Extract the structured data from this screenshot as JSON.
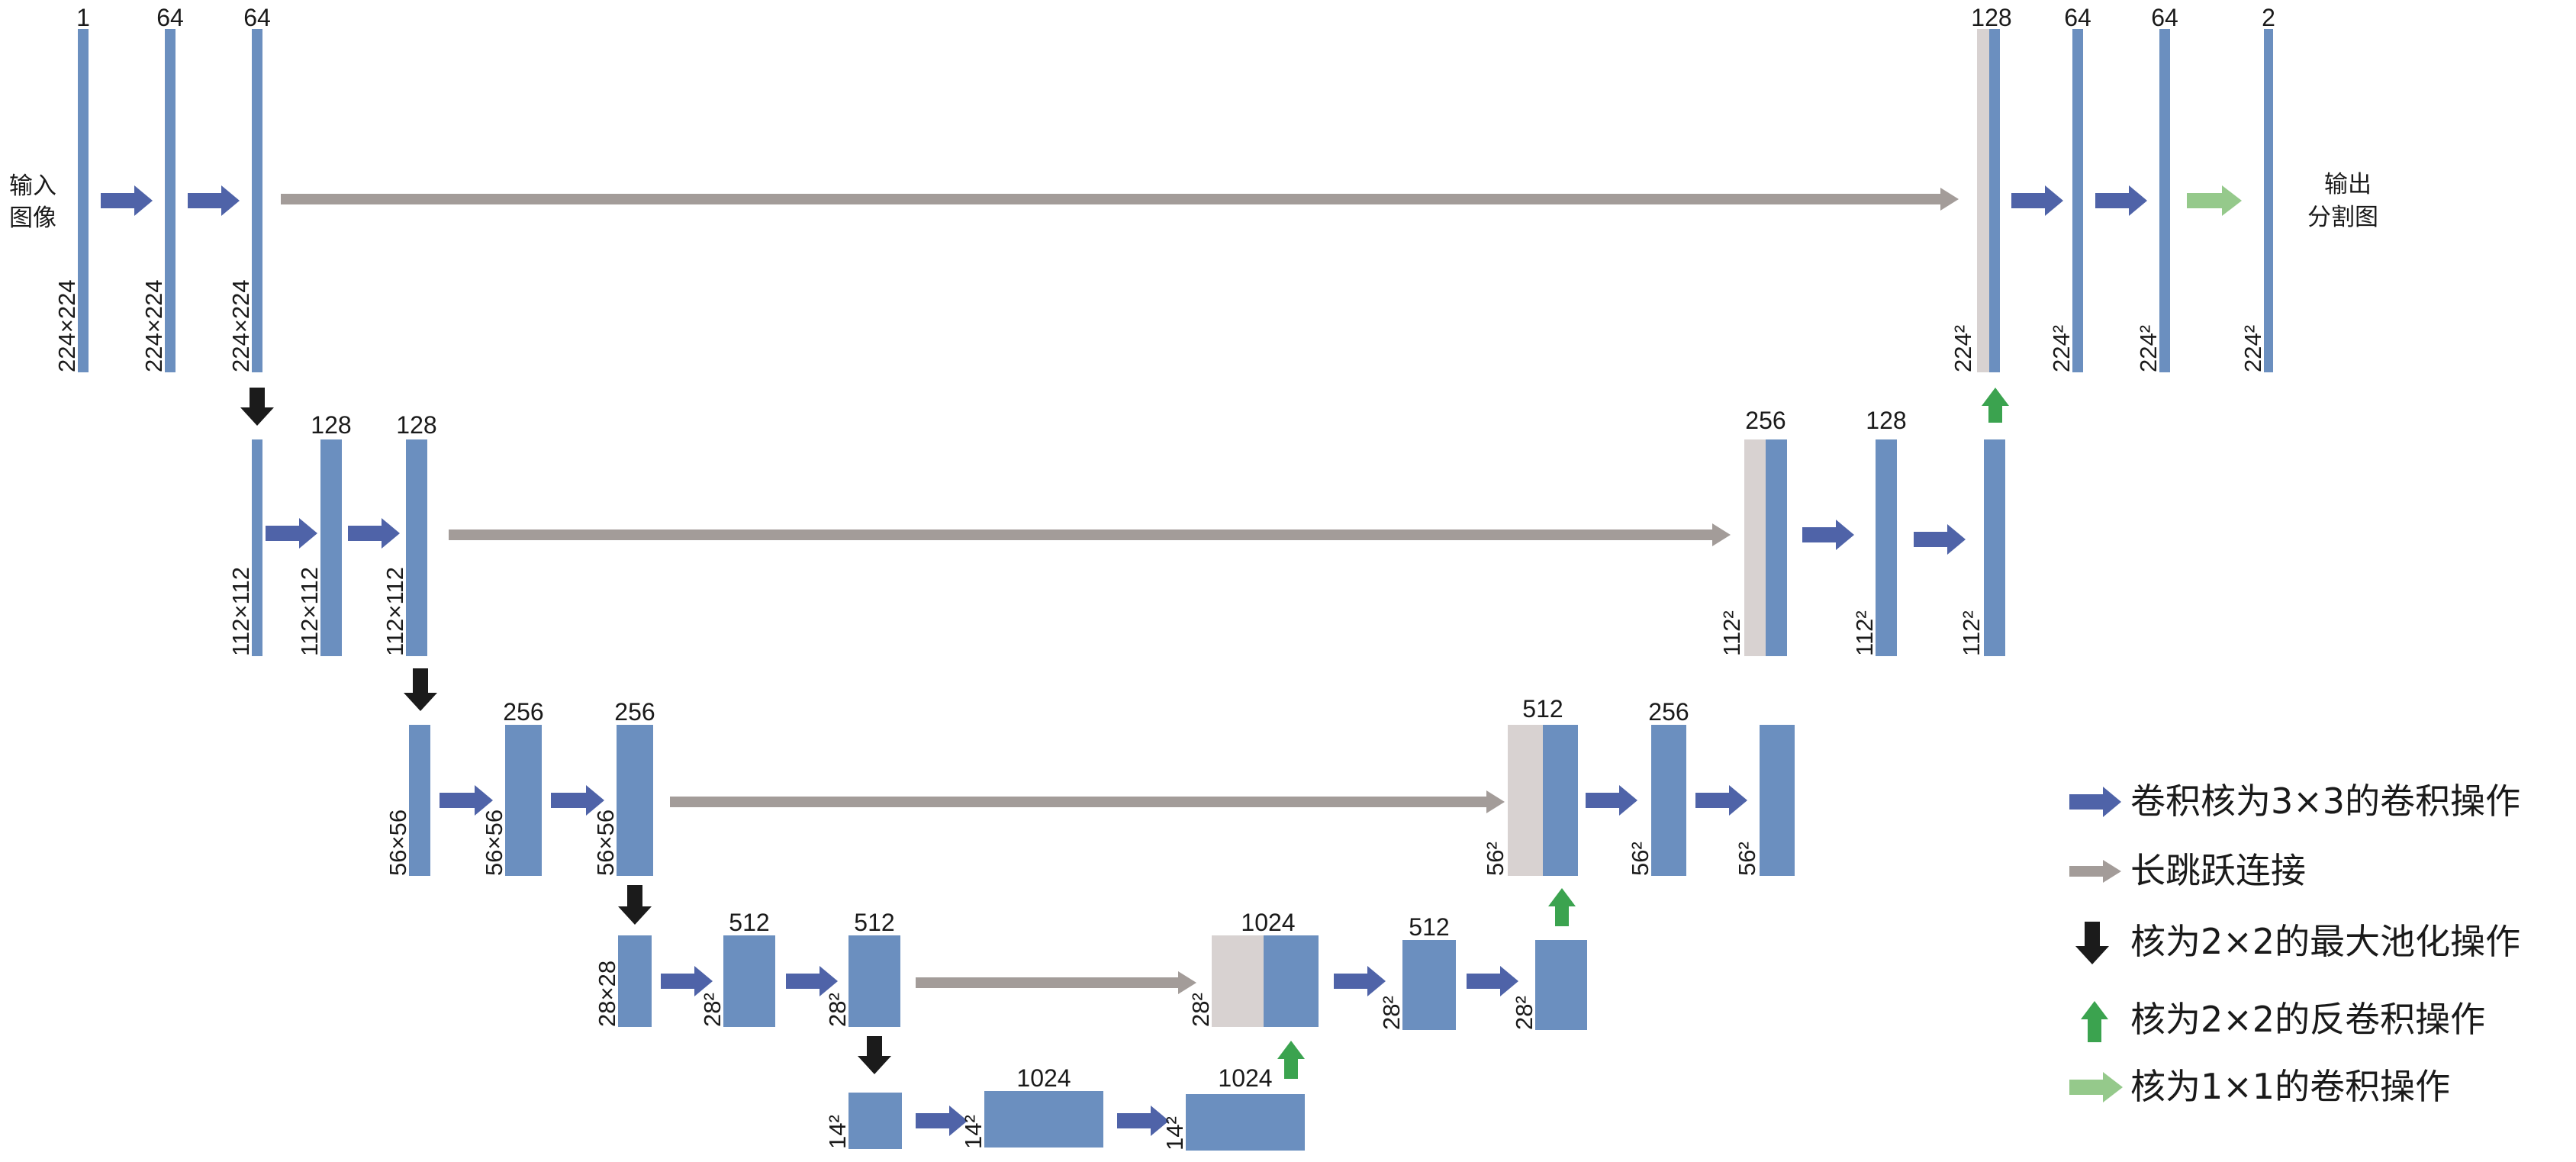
{
  "colors": {
    "block": "#6b8fbf",
    "concat": "#d8d2d1",
    "conv_arrow": "#4f63a8",
    "skip_arrow": "#a39c99",
    "pool_arrow": "#1b1b1b",
    "upconv_arrow": "#3ba34f",
    "conv1x1_arrow": "#95c98b"
  },
  "labels": {
    "input": [
      "输入",
      "图像"
    ],
    "output": [
      "输出",
      "分割图"
    ]
  },
  "channels": {
    "l1_in": "1",
    "l1_a": "64",
    "l1_b": "64",
    "l1_up": "128",
    "l1_c": "64",
    "l1_d": "64",
    "l1_out": "2",
    "l2_a": "128",
    "l2_b": "128",
    "l2_up": "256",
    "l2_c": "128",
    "l3_a": "256",
    "l3_b": "256",
    "l3_up": "512",
    "l3_c": "256",
    "l4_a": "512",
    "l4_b": "512",
    "l4_up": "1024",
    "l4_c": "512",
    "l5_a": "1024",
    "l5_b": "1024"
  },
  "sizes": {
    "l1": "224×224",
    "l1_short": "224²",
    "l2": "112×112",
    "l2_short": "112²",
    "l3": "56×56",
    "l3_short": "56²",
    "l4": "28×28",
    "l4_short": "28²",
    "l5_short": "14²"
  },
  "legend": [
    {
      "icon": "conv-arrow-icon",
      "text": "卷积核为3×3的卷积操作"
    },
    {
      "icon": "skip-arrow-icon",
      "text": "长跳跃连接"
    },
    {
      "icon": "pool-arrow-icon",
      "text": "核为2×2的最大池化操作"
    },
    {
      "icon": "upconv-arrow-icon",
      "text": "核为2×2的反卷积操作"
    },
    {
      "icon": "conv1x1-arrow-icon",
      "text": "核为1×1的卷积操作"
    }
  ]
}
